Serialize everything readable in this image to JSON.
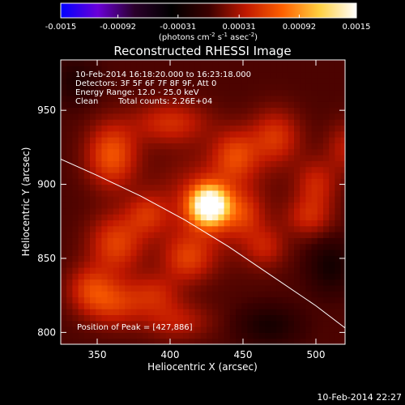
{
  "colorbar": {
    "ticks": [
      "-0.0015",
      "-0.00092",
      "-0.00031",
      "0.00031",
      "0.00092",
      "0.0015"
    ],
    "tick_values": [
      -0.0015,
      -0.00092,
      -0.00031,
      0.00031,
      0.00092,
      0.0015
    ],
    "range": [
      -0.0015,
      0.0015
    ],
    "unit_prefix": "(photons cm",
    "unit_sup1": "-2",
    "unit_mid": " s",
    "unit_sup2": "-1",
    "unit_mid2": " asec",
    "unit_sup3": "-2",
    "unit_suffix": ")",
    "colors": [
      "#0000ff",
      "#6a00d8",
      "#2a002a",
      "#000000",
      "#3a0000",
      "#c01800",
      "#ff6000",
      "#ffd040",
      "#ffffff"
    ]
  },
  "chart_data": {
    "type": "heatmap",
    "title": "Reconstructed RHESSI Image",
    "xlabel": "Heliocentric X (arcsec)",
    "ylabel": "Heliocentric Y (arcsec)",
    "xlim": [
      325,
      520
    ],
    "ylim": [
      792,
      984
    ],
    "x_ticks": [
      350,
      400,
      450,
      500
    ],
    "y_ticks": [
      800,
      850,
      900,
      950
    ],
    "annotations": {
      "time_range": "10-Feb-2014 16:18:20.000 to 16:23:18.000",
      "detectors": "Detectors: 3F 5F 6F 7F 8F 9F, Att 0",
      "energy": "Energy Range: 12.0 - 25.0 keV",
      "clean": "Clean",
      "counts": "Total counts: 2.26E+04",
      "peak": "Position of Peak = [427,886]"
    },
    "peak": {
      "x": 427,
      "y": 886
    },
    "limb": {
      "x": [
        325,
        350,
        380,
        410,
        440,
        470,
        500,
        520
      ],
      "y": [
        917,
        906,
        892,
        876,
        858,
        838,
        818,
        803
      ]
    },
    "blobs": [
      {
        "x": 427,
        "y": 886,
        "sx": 9,
        "sy": 9,
        "v": 0.0015
      },
      {
        "x": 427,
        "y": 886,
        "sx": 24,
        "sy": 22,
        "v": 0.0004
      },
      {
        "x": 360,
        "y": 920,
        "sx": 12,
        "sy": 15,
        "v": 0.00062
      },
      {
        "x": 363,
        "y": 860,
        "sx": 13,
        "sy": 14,
        "v": 0.00052
      },
      {
        "x": 345,
        "y": 830,
        "sx": 11,
        "sy": 11,
        "v": 0.00042
      },
      {
        "x": 362,
        "y": 820,
        "sx": 14,
        "sy": 11,
        "v": 0.00045
      },
      {
        "x": 400,
        "y": 942,
        "sx": 18,
        "sy": 10,
        "v": 0.00042
      },
      {
        "x": 445,
        "y": 920,
        "sx": 11,
        "sy": 12,
        "v": 0.00048
      },
      {
        "x": 472,
        "y": 932,
        "sx": 12,
        "sy": 13,
        "v": 0.00046
      },
      {
        "x": 500,
        "y": 900,
        "sx": 10,
        "sy": 12,
        "v": 0.00038
      },
      {
        "x": 495,
        "y": 878,
        "sx": 11,
        "sy": 9,
        "v": 0.00035
      },
      {
        "x": 465,
        "y": 858,
        "sx": 10,
        "sy": 10,
        "v": 0.00032
      },
      {
        "x": 412,
        "y": 850,
        "sx": 12,
        "sy": 11,
        "v": 0.00044
      },
      {
        "x": 390,
        "y": 826,
        "sx": 12,
        "sy": 10,
        "v": 0.00034
      },
      {
        "x": 405,
        "y": 808,
        "sx": 16,
        "sy": 9,
        "v": 0.00031
      },
      {
        "x": 450,
        "y": 880,
        "sx": 9,
        "sy": 10,
        "v": 0.0003
      },
      {
        "x": 384,
        "y": 880,
        "sx": 10,
        "sy": 10,
        "v": 0.00036
      },
      {
        "x": 520,
        "y": 925,
        "sx": 9,
        "sy": 12,
        "v": 0.0003
      },
      {
        "x": 510,
        "y": 845,
        "sx": 10,
        "sy": 12,
        "v": -0.0003
      },
      {
        "x": 468,
        "y": 805,
        "sx": 14,
        "sy": 9,
        "v": -0.00028
      },
      {
        "x": 335,
        "y": 970,
        "sx": 10,
        "sy": 10,
        "v": -0.00022
      }
    ]
  },
  "footer": {
    "timestamp": "10-Feb-2014 22:27"
  }
}
